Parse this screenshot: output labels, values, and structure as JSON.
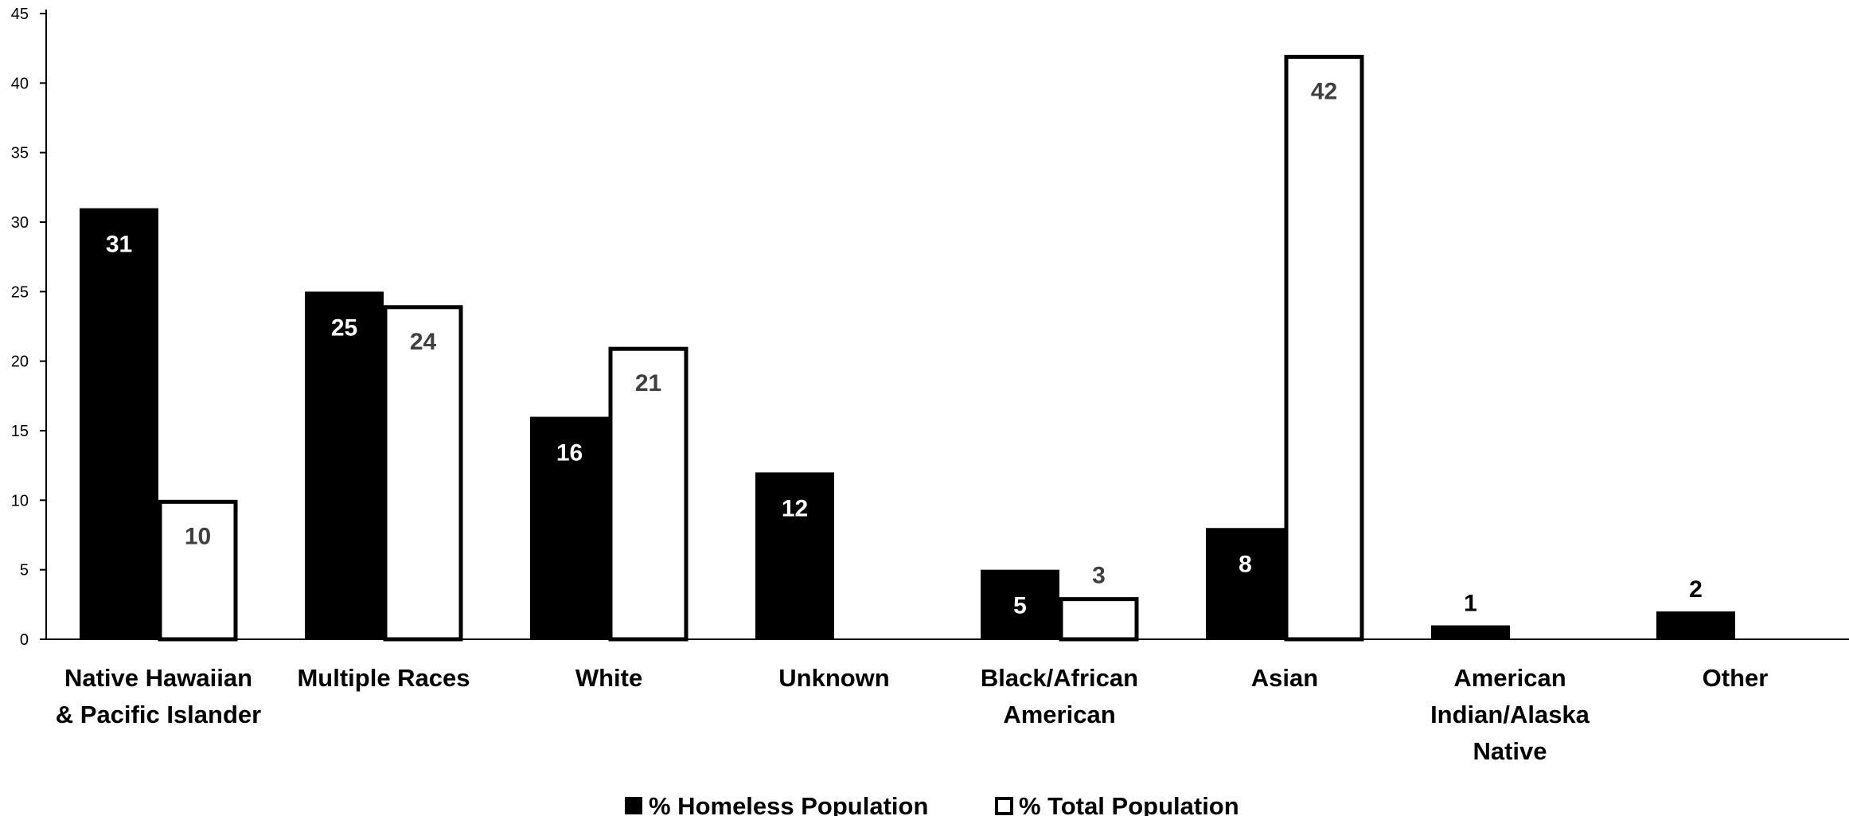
{
  "chart_data": {
    "type": "bar",
    "title": "",
    "xlabel": "",
    "ylabel": "",
    "ylim": [
      0,
      45
    ],
    "yticks": [
      0,
      5,
      10,
      15,
      20,
      25,
      30,
      35,
      40,
      45
    ],
    "grid": false,
    "legend_position": "bottom",
    "categories": [
      [
        "Native Hawaiian",
        "& Pacific Islander"
      ],
      [
        "Multiple Races"
      ],
      [
        "White"
      ],
      [
        "Unknown"
      ],
      [
        "Black/African",
        "American"
      ],
      [
        "Asian"
      ],
      [
        "American",
        "Indian/Alaska",
        "Native"
      ],
      [
        "Other"
      ]
    ],
    "series": [
      {
        "name": "% Homeless Population",
        "color": "#000000",
        "values": [
          31,
          25,
          16,
          12,
          5,
          8,
          1,
          2
        ]
      },
      {
        "name": "% Total Population",
        "color": "#ffffff",
        "values": [
          10,
          24,
          21,
          null,
          3,
          42,
          null,
          null
        ]
      }
    ]
  }
}
